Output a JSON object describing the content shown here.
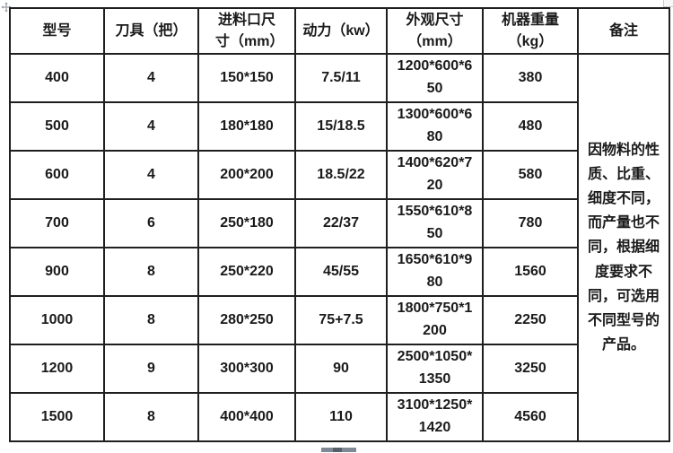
{
  "table": {
    "headers": [
      "型号",
      "刀具（把）",
      "进料口尺寸（mm）",
      "动力（kw）",
      "外观尺寸（mm）",
      "机器重量（kg）",
      "备注"
    ],
    "rows": [
      [
        "400",
        "4",
        "150*150",
        "7.5/11",
        "1200*600*650",
        "380"
      ],
      [
        "500",
        "4",
        "180*180",
        "15/18.5",
        "1300*600*680",
        "480"
      ],
      [
        "600",
        "4",
        "200*200",
        "18.5/22",
        "1400*620*720",
        "580"
      ],
      [
        "700",
        "6",
        "250*180",
        "22/37",
        "1550*610*850",
        "780"
      ],
      [
        "900",
        "8",
        "250*220",
        "45/55",
        "1650*610*980",
        "1560"
      ],
      [
        "1000",
        "8",
        "280*250",
        "75+7.5",
        "1800*750*1200",
        "2250"
      ],
      [
        "1200",
        "9",
        "300*300",
        "90",
        "2500*1050*1350",
        "3250"
      ],
      [
        "1500",
        "8",
        "400*400",
        "110",
        "3100*1250*1420",
        "4560"
      ]
    ],
    "remark": "因物料的性质、比重、细度不同，而产量也不同，根据细度要求不同，可选用不同型号的产品。"
  },
  "icons": {
    "table_move_handle": "four-direction-arrows",
    "corner_handle": "selection-square"
  },
  "colors": {
    "background": "#ffffff",
    "border": "#1f1f1f",
    "text": "#1a1a1a",
    "scrollbar": "#7f8993",
    "scrollbar_dark": "#565f68",
    "handle_gray": "#8a8f94"
  }
}
